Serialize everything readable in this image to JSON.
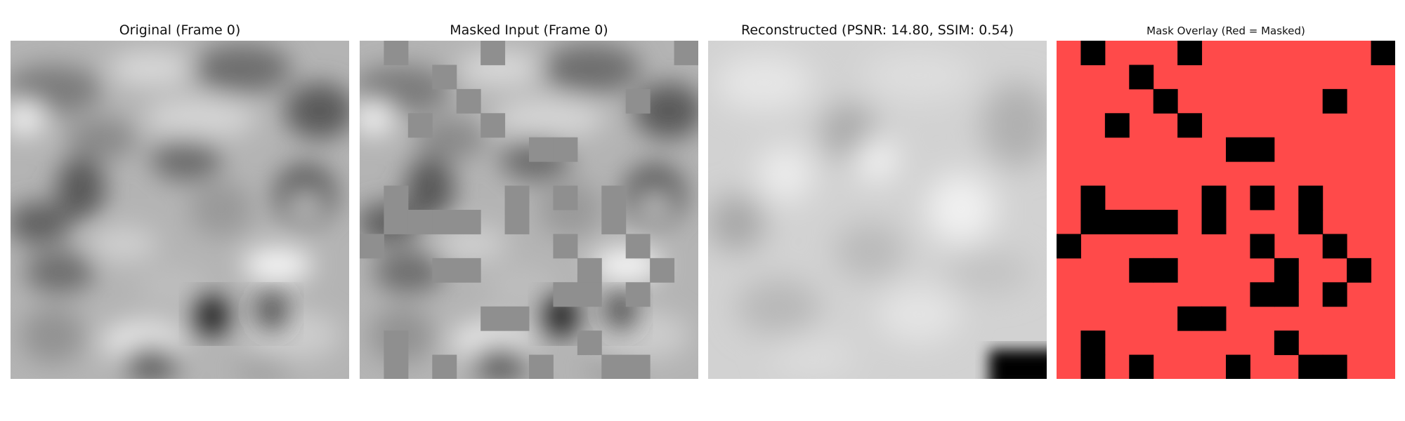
{
  "panels": [
    {
      "title": "Original (Frame 0)"
    },
    {
      "title": "Masked Input (Frame 0)"
    },
    {
      "title": "Reconstructed (PSNR: 14.80, SSIM: 0.54)"
    },
    {
      "title": "Mask Overlay (Red = Masked)"
    }
  ],
  "colors": {
    "mask_fill": "#8f8f8f",
    "overlay_red": "#ff4a4a",
    "overlay_black": "#000000"
  },
  "mask_grid": {
    "size": 14,
    "unmasked_cells": [
      [
        0,
        1
      ],
      [
        0,
        5
      ],
      [
        0,
        13
      ],
      [
        1,
        3
      ],
      [
        2,
        4
      ],
      [
        2,
        11
      ],
      [
        3,
        2
      ],
      [
        3,
        5
      ],
      [
        4,
        7
      ],
      [
        4,
        8
      ],
      [
        6,
        1
      ],
      [
        6,
        6
      ],
      [
        6,
        8
      ],
      [
        6,
        10
      ],
      [
        7,
        1
      ],
      [
        7,
        2
      ],
      [
        7,
        3
      ],
      [
        7,
        4
      ],
      [
        7,
        6
      ],
      [
        7,
        10
      ],
      [
        8,
        0
      ],
      [
        8,
        8
      ],
      [
        8,
        11
      ],
      [
        9,
        3
      ],
      [
        9,
        4
      ],
      [
        9,
        9
      ],
      [
        9,
        12
      ],
      [
        10,
        8
      ],
      [
        10,
        9
      ],
      [
        10,
        11
      ],
      [
        11,
        5
      ],
      [
        11,
        6
      ],
      [
        12,
        1
      ],
      [
        12,
        9
      ],
      [
        13,
        1
      ],
      [
        13,
        3
      ],
      [
        13,
        7
      ],
      [
        13,
        10
      ],
      [
        13,
        11
      ]
    ]
  }
}
